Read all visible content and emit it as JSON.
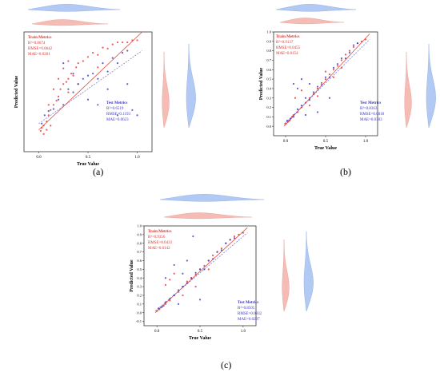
{
  "figure": {
    "captions": [
      "(a)",
      "(b)",
      "(c)"
    ],
    "caption_letters": [
      "a",
      "b",
      "c"
    ]
  },
  "colors": {
    "train": "#e4302a",
    "train_violin": "#f4b4ae",
    "test": "#3a35c8",
    "test_violin": "#a9c4f2",
    "fit_train": "#e24b3c",
    "fit_test": "#6a73d8"
  },
  "chart_data": [
    {
      "type": "scatter",
      "xlabel": "True Value",
      "ylabel": "Predicted Value",
      "xlim": [
        -0.15,
        1.15
      ],
      "ylim": [
        -0.15,
        1.0
      ],
      "xticks": [
        "0.0",
        "0.5",
        "1.0"
      ],
      "yticks": [],
      "train_metrics": {
        "title": "Train Metrics",
        "r2": "R²=0.8674",
        "rmse": "RMSE=0.0642",
        "mae": "MAE=0.0281"
      },
      "test_metrics": {
        "title": "Test Metrics",
        "r2": "R²=0.6519",
        "rmse": "RMSE=0.1193",
        "mae": "MAE=0.0623"
      },
      "series": [
        {
          "name": "Train",
          "points": [
            [
              0.02,
              0.05
            ],
            [
              0.03,
              0.08
            ],
            [
              0.05,
              0.1
            ],
            [
              0.08,
              0.14
            ],
            [
              0.1,
              0.2
            ],
            [
              0.12,
              0.25
            ],
            [
              0.15,
              0.3
            ],
            [
              0.18,
              0.34
            ],
            [
              0.2,
              0.38
            ],
            [
              0.22,
              0.45
            ],
            [
              0.25,
              0.5
            ],
            [
              0.28,
              0.52
            ],
            [
              0.3,
              0.55
            ],
            [
              0.33,
              0.6
            ],
            [
              0.35,
              0.58
            ],
            [
              0.38,
              0.66
            ],
            [
              0.4,
              0.7
            ],
            [
              0.45,
              0.72
            ],
            [
              0.5,
              0.76
            ],
            [
              0.55,
              0.8
            ],
            [
              0.6,
              0.78
            ],
            [
              0.65,
              0.85
            ],
            [
              0.7,
              0.84
            ],
            [
              0.75,
              0.88
            ],
            [
              0.8,
              0.9
            ],
            [
              0.85,
              0.9
            ],
            [
              0.9,
              0.9
            ],
            [
              0.95,
              0.92
            ],
            [
              1.0,
              0.92
            ],
            [
              0.1,
              0.3
            ],
            [
              0.15,
              0.45
            ],
            [
              0.2,
              0.55
            ],
            [
              0.25,
              0.65
            ],
            [
              0.3,
              0.72
            ],
            [
              0.05,
              0.02
            ],
            [
              0.08,
              0.06
            ],
            [
              0.12,
              0.1
            ],
            [
              0.3,
              0.42
            ],
            [
              0.4,
              0.5
            ],
            [
              0.6,
              0.66
            ]
          ]
        },
        {
          "name": "Test",
          "points": [
            [
              0.03,
              0.12
            ],
            [
              0.06,
              0.2
            ],
            [
              0.1,
              0.24
            ],
            [
              0.15,
              0.26
            ],
            [
              0.2,
              0.35
            ],
            [
              0.25,
              0.3
            ],
            [
              0.3,
              0.45
            ],
            [
              0.35,
              0.42
            ],
            [
              0.4,
              0.5
            ],
            [
              0.45,
              0.55
            ],
            [
              0.5,
              0.58
            ],
            [
              0.55,
              0.6
            ],
            [
              0.6,
              0.55
            ],
            [
              0.65,
              0.7
            ],
            [
              0.7,
              0.62
            ],
            [
              0.75,
              0.75
            ],
            [
              0.8,
              0.7
            ],
            [
              0.85,
              0.8
            ],
            [
              0.9,
              0.82
            ],
            [
              0.95,
              0.25
            ],
            [
              0.8,
              0.2
            ],
            [
              0.6,
              0.3
            ],
            [
              0.5,
              0.35
            ],
            [
              0.35,
              0.6
            ],
            [
              0.25,
              0.7
            ],
            [
              0.9,
              0.5
            ],
            [
              0.7,
              0.45
            ],
            [
              1.0,
              0.2
            ]
          ]
        }
      ],
      "fit_train": [
        [
          0.0,
          0.06
        ],
        [
          1.05,
          1.0
        ]
      ],
      "fit_test": [
        [
          0.0,
          0.12
        ],
        [
          1.05,
          0.82
        ]
      ]
    },
    {
      "type": "scatter",
      "xlabel": "True Value",
      "ylabel": "Predicted Value",
      "xlim": [
        -0.15,
        1.15
      ],
      "ylim": [
        -0.1,
        1.0
      ],
      "xticks": [
        "0.0",
        "0.5",
        "1.0"
      ],
      "yticks": [
        "0.0",
        "0.1",
        "0.2",
        "0.3",
        "0.4",
        "0.5",
        "0.6",
        "0.7",
        "0.8",
        "0.9",
        "1.0"
      ],
      "train_metrics": {
        "title": "Train Metrics",
        "r2": "R²=0.9137",
        "rmse": "RMSE=0.0455",
        "mae": "MAE=0.0154"
      },
      "test_metrics": {
        "title": "Test Metrics",
        "r2": "R²=0.8363",
        "rmse": "RMSE=0.0818",
        "mae": "MAE=0.0303"
      },
      "series": [
        {
          "name": "Train",
          "points": [
            [
              0.0,
              0.03
            ],
            [
              0.03,
              0.05
            ],
            [
              0.05,
              0.06
            ],
            [
              0.08,
              0.1
            ],
            [
              0.1,
              0.12
            ],
            [
              0.15,
              0.15
            ],
            [
              0.2,
              0.2
            ],
            [
              0.25,
              0.25
            ],
            [
              0.3,
              0.3
            ],
            [
              0.35,
              0.34
            ],
            [
              0.4,
              0.4
            ],
            [
              0.45,
              0.46
            ],
            [
              0.5,
              0.5
            ],
            [
              0.55,
              0.55
            ],
            [
              0.6,
              0.6
            ],
            [
              0.65,
              0.64
            ],
            [
              0.7,
              0.7
            ],
            [
              0.75,
              0.76
            ],
            [
              0.8,
              0.8
            ],
            [
              0.85,
              0.84
            ],
            [
              0.9,
              0.88
            ],
            [
              0.95,
              0.9
            ],
            [
              1.0,
              0.92
            ],
            [
              0.12,
              0.3
            ],
            [
              0.2,
              0.38
            ],
            [
              0.3,
              0.22
            ],
            [
              0.4,
              0.32
            ],
            [
              0.6,
              0.52
            ],
            [
              0.7,
              0.62
            ],
            [
              0.5,
              0.58
            ]
          ]
        },
        {
          "name": "Test",
          "points": [
            [
              0.02,
              0.06
            ],
            [
              0.06,
              0.08
            ],
            [
              0.1,
              0.1
            ],
            [
              0.15,
              0.18
            ],
            [
              0.2,
              0.22
            ],
            [
              0.25,
              0.3
            ],
            [
              0.3,
              0.28
            ],
            [
              0.35,
              0.36
            ],
            [
              0.4,
              0.42
            ],
            [
              0.45,
              0.44
            ],
            [
              0.5,
              0.52
            ],
            [
              0.55,
              0.52
            ],
            [
              0.6,
              0.62
            ],
            [
              0.65,
              0.66
            ],
            [
              0.7,
              0.72
            ],
            [
              0.75,
              0.72
            ],
            [
              0.8,
              0.78
            ],
            [
              0.85,
              0.86
            ],
            [
              0.9,
              0.88
            ],
            [
              0.1,
              0.45
            ],
            [
              0.2,
              0.5
            ],
            [
              0.3,
              0.45
            ],
            [
              0.4,
              0.15
            ],
            [
              0.55,
              0.3
            ],
            [
              0.15,
              0.4
            ],
            [
              0.25,
              0.12
            ]
          ]
        }
      ],
      "fit_train": [
        [
          -0.02,
          0.0
        ],
        [
          1.05,
          0.98
        ]
      ],
      "fit_test": [
        [
          -0.02,
          0.02
        ],
        [
          1.05,
          0.92
        ]
      ]
    },
    {
      "type": "scatter",
      "xlabel": "True Value",
      "ylabel": "Predicted Value",
      "xlim": [
        -0.15,
        1.15
      ],
      "ylim": [
        -0.15,
        1.0
      ],
      "xticks": [
        "0.0",
        "0.5",
        "1.0"
      ],
      "yticks": [
        "-0.1",
        "0.0",
        "0.1",
        "0.2",
        "0.3",
        "0.4",
        "0.5",
        "0.6",
        "0.7",
        "0.8",
        "0.9",
        "1.0"
      ],
      "train_metrics": {
        "title": "Train Metrics",
        "r2": "R²=0.9356",
        "rmse": "RMSE=0.0433",
        "mae": "MAE=0.0142"
      },
      "test_metrics": {
        "title": "Test Metrics",
        "r2": "R²=0.8505",
        "rmse": "RMSE=0.0832",
        "mae": "MAE=0.0297"
      },
      "series": [
        {
          "name": "Train",
          "points": [
            [
              0.0,
              0.02
            ],
            [
              0.03,
              0.04
            ],
            [
              0.05,
              0.06
            ],
            [
              0.08,
              0.08
            ],
            [
              0.1,
              0.1
            ],
            [
              0.15,
              0.14
            ],
            [
              0.2,
              0.2
            ],
            [
              0.25,
              0.24
            ],
            [
              0.3,
              0.3
            ],
            [
              0.35,
              0.36
            ],
            [
              0.4,
              0.4
            ],
            [
              0.45,
              0.44
            ],
            [
              0.5,
              0.5
            ],
            [
              0.55,
              0.54
            ],
            [
              0.6,
              0.6
            ],
            [
              0.65,
              0.66
            ],
            [
              0.7,
              0.7
            ],
            [
              0.75,
              0.74
            ],
            [
              0.8,
              0.8
            ],
            [
              0.85,
              0.84
            ],
            [
              0.9,
              0.88
            ],
            [
              0.95,
              0.9
            ],
            [
              1.0,
              0.92
            ],
            [
              0.1,
              0.32
            ],
            [
              0.2,
              0.45
            ],
            [
              0.15,
              0.38
            ],
            [
              0.3,
              0.2
            ],
            [
              0.6,
              0.5
            ],
            [
              0.45,
              0.3
            ]
          ]
        },
        {
          "name": "Test",
          "points": [
            [
              0.02,
              0.05
            ],
            [
              0.06,
              0.07
            ],
            [
              0.1,
              0.12
            ],
            [
              0.15,
              0.16
            ],
            [
              0.2,
              0.2
            ],
            [
              0.25,
              0.26
            ],
            [
              0.3,
              0.3
            ],
            [
              0.35,
              0.34
            ],
            [
              0.4,
              0.4
            ],
            [
              0.45,
              0.46
            ],
            [
              0.5,
              0.5
            ],
            [
              0.55,
              0.5
            ],
            [
              0.6,
              0.6
            ],
            [
              0.65,
              0.62
            ],
            [
              0.7,
              0.7
            ],
            [
              0.75,
              0.72
            ],
            [
              0.8,
              0.8
            ],
            [
              0.85,
              0.84
            ],
            [
              0.9,
              0.86
            ],
            [
              0.1,
              0.4
            ],
            [
              0.2,
              0.55
            ],
            [
              0.3,
              0.45
            ],
            [
              0.42,
              0.88
            ],
            [
              0.5,
              0.15
            ],
            [
              0.25,
              0.1
            ],
            [
              0.35,
              0.6
            ]
          ]
        }
      ],
      "fit_train": [
        [
          -0.02,
          0.0
        ],
        [
          1.05,
          0.98
        ]
      ],
      "fit_test": [
        [
          -0.02,
          0.02
        ],
        [
          1.05,
          0.92
        ]
      ]
    }
  ]
}
